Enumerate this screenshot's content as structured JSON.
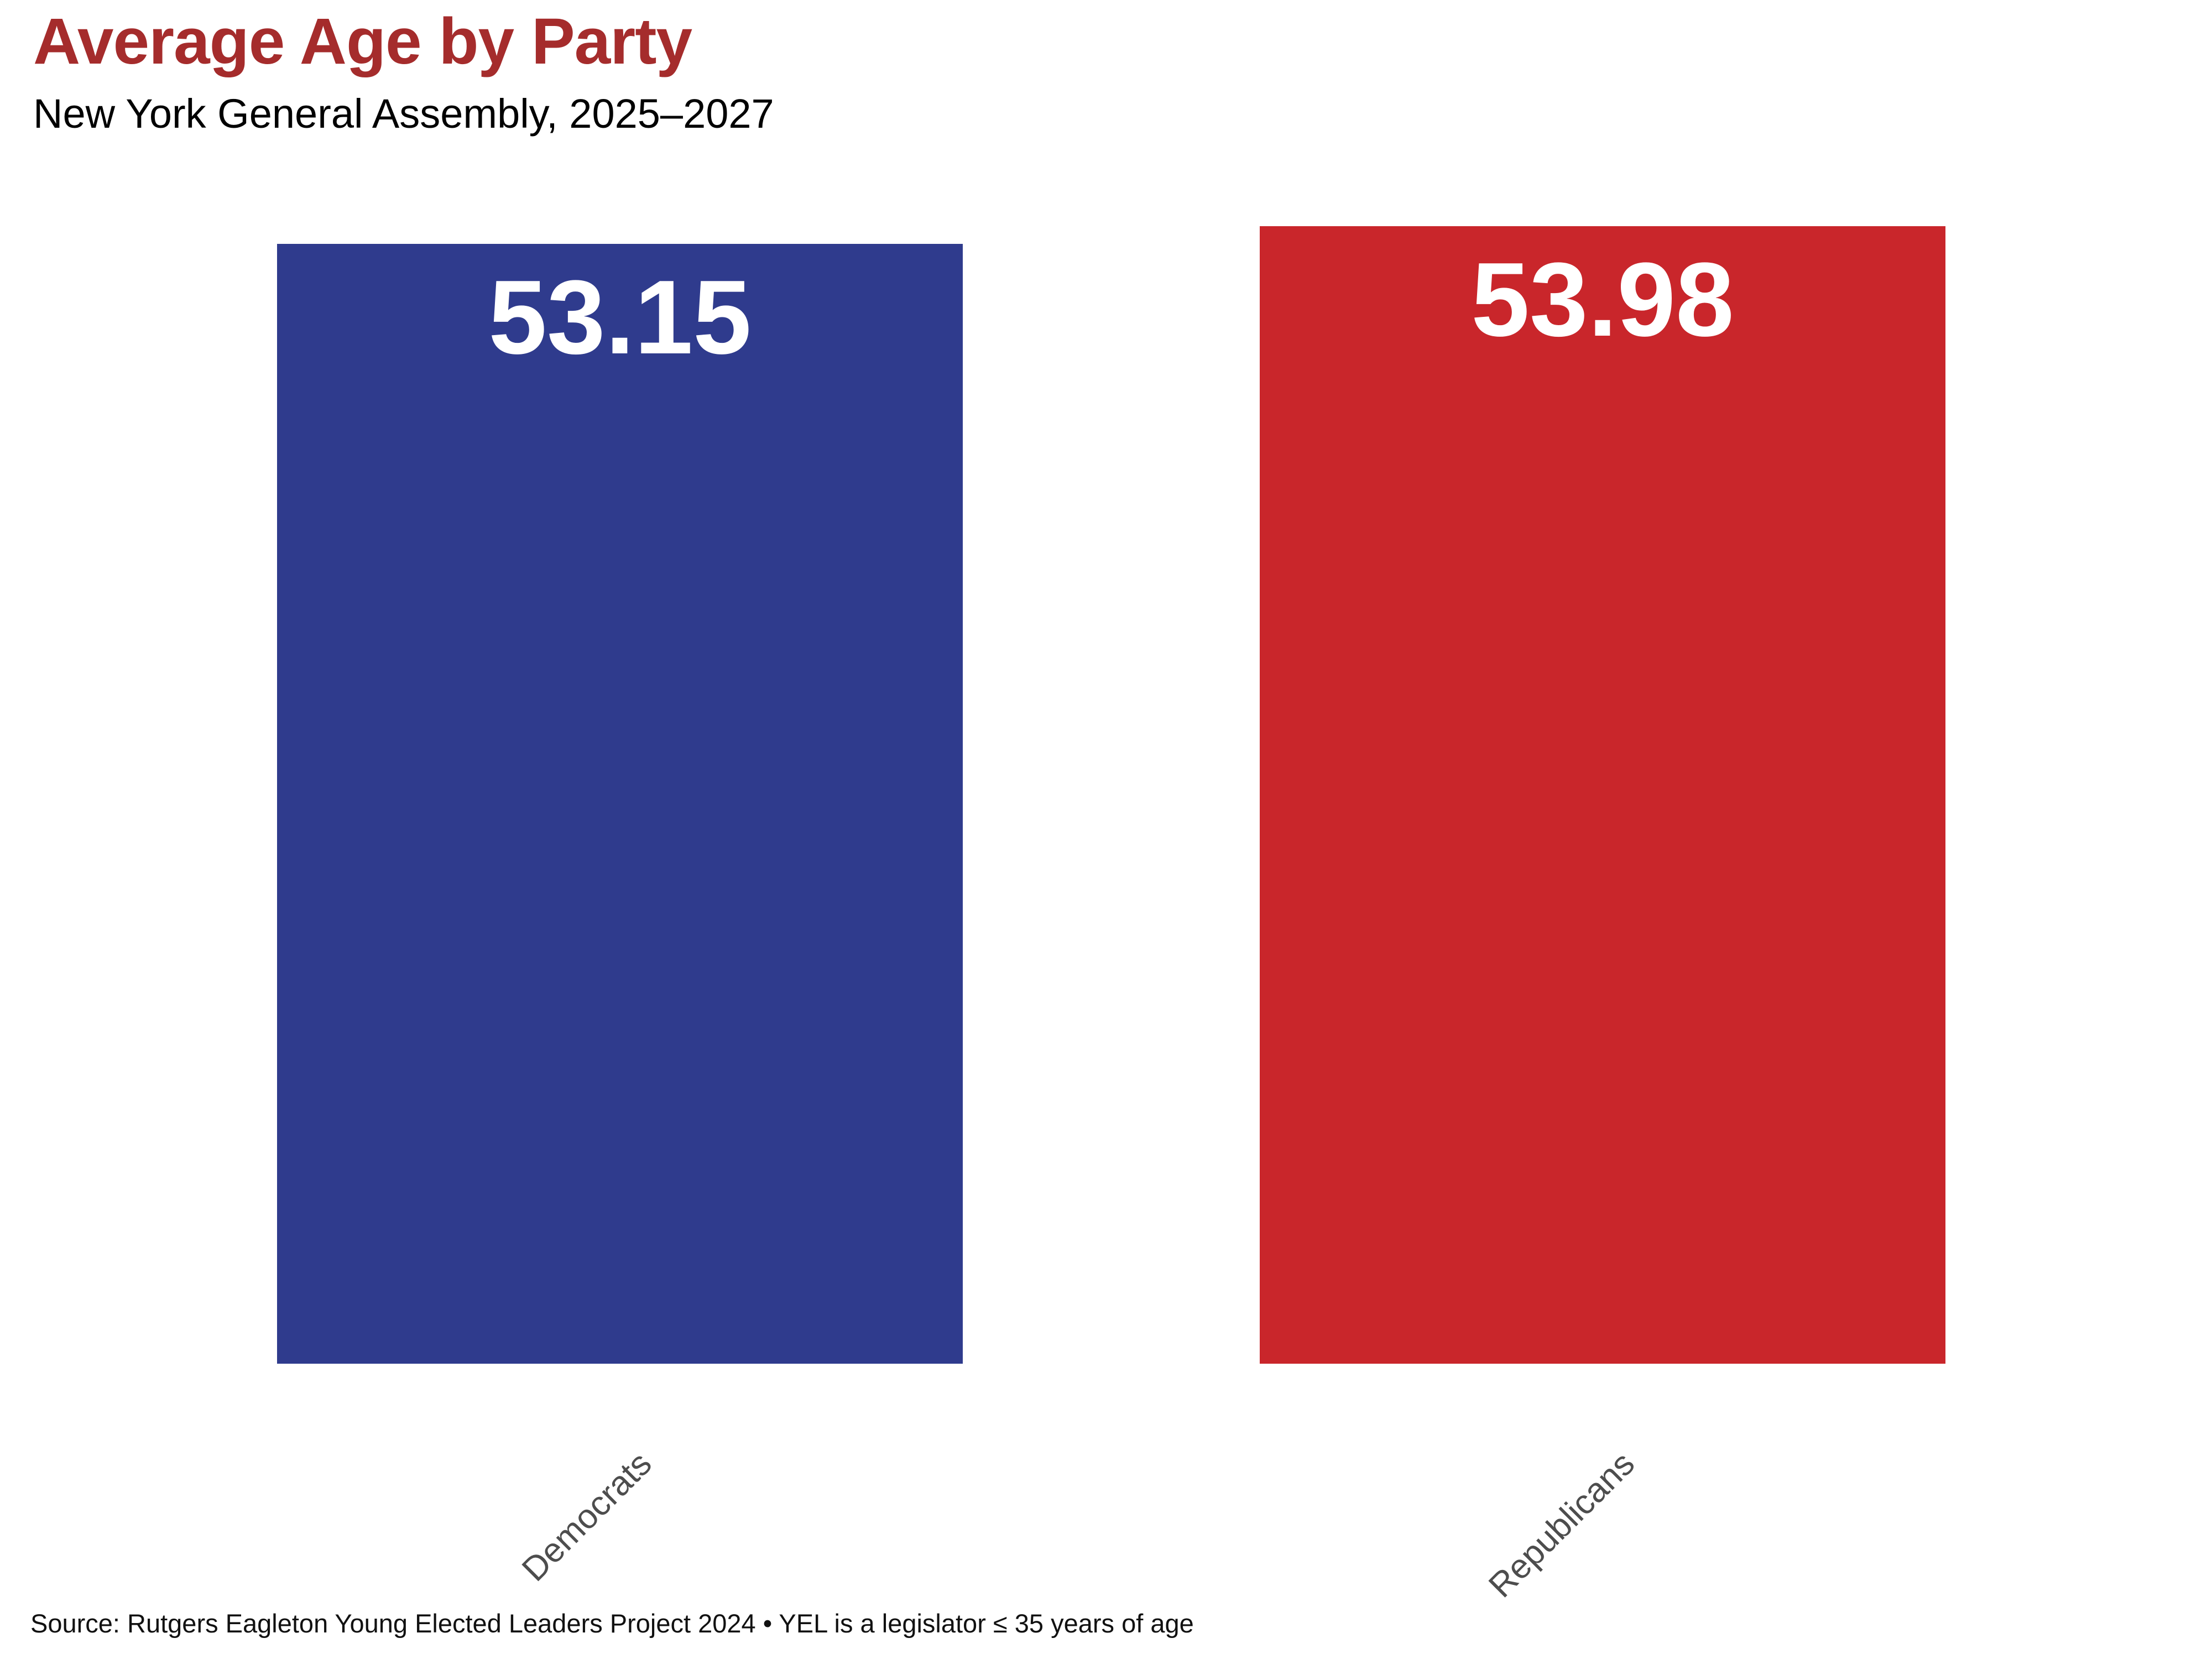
{
  "header": {
    "title": "Average Age by Party",
    "subtitle": "New York General Assembly, 2025–2027"
  },
  "footer": {
    "source": "Source: Rutgers Eagleton Young Elected Leaders Project 2024 • YEL is a legislator ≤ 35 years of age"
  },
  "colors": {
    "title": "#A52C2C",
    "democrat_bar": "#2F3B8D",
    "republican_bar": "#C9262B",
    "value_label": "#FFFFFF",
    "axis_label": "#4D4D4D"
  },
  "chart_data": {
    "type": "bar",
    "title": "Average Age by Party",
    "subtitle": "New York General Assembly, 2025–2027",
    "categories": [
      "Democrats",
      "Republicans"
    ],
    "values": [
      53.15,
      53.98
    ],
    "value_labels": [
      "53.15",
      "53.98"
    ],
    "bar_colors": [
      "#2F3B8D",
      "#C9262B"
    ],
    "ylabel": "",
    "xlabel": "",
    "ylim": [
      0,
      56.5
    ],
    "grid": false,
    "axes_visible": false,
    "legend": "none",
    "value_label_position": "inside-top",
    "tick_label_rotation": 45,
    "source_note": "Source: Rutgers Eagleton Young Elected Leaders Project 2024 • YEL is a legislator ≤ 35 years of age"
  }
}
